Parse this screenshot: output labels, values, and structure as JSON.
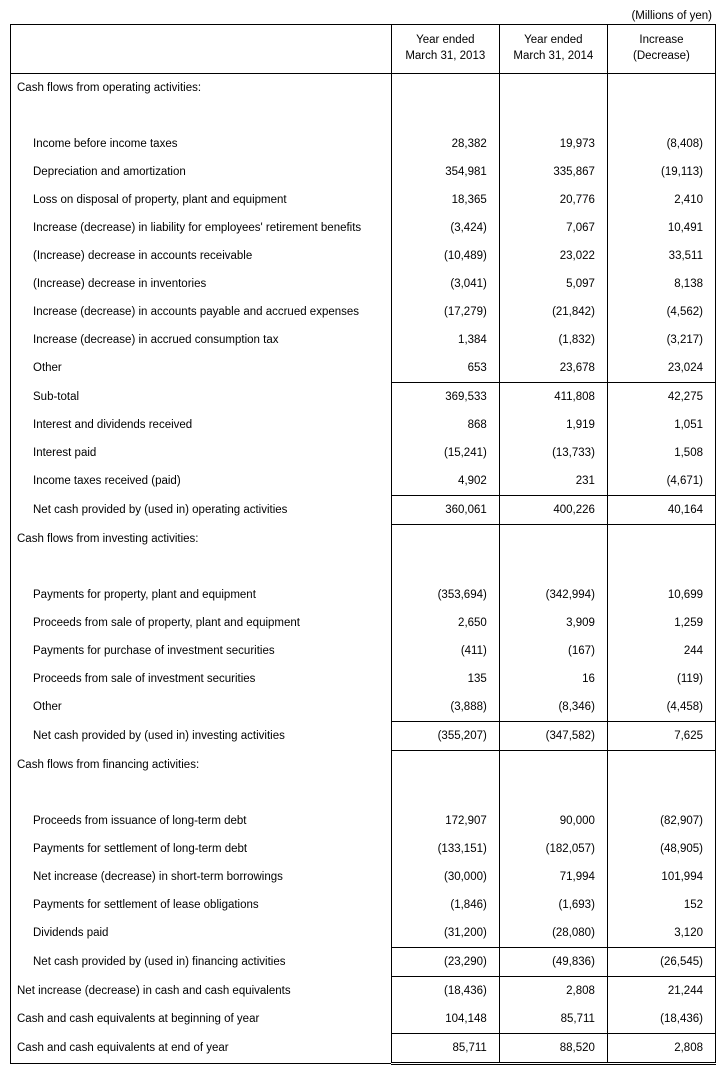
{
  "units_label": "(Millions of yen)",
  "headers": {
    "blank": "",
    "col1_line1": "Year ended",
    "col1_line2": "March 31, 2013",
    "col2_line1": "Year ended",
    "col2_line2": "March 31, 2014",
    "col3_line1": "Increase",
    "col3_line2": "(Decrease)"
  },
  "sections": {
    "op": "Cash flows from operating activities:",
    "inv": "Cash flows from investing activities:",
    "fin": "Cash flows from financing activities:"
  },
  "rows": {
    "income_before_tax": {
      "label": "Income before income taxes",
      "c1": "28,382",
      "c2": "19,973",
      "c3": "(8,408)"
    },
    "dep_amort": {
      "label": "Depreciation and amortization",
      "c1": "354,981",
      "c2": "335,867",
      "c3": "(19,113)"
    },
    "loss_disposal_ppe": {
      "label": "Loss on disposal of property, plant and equipment",
      "c1": "18,365",
      "c2": "20,776",
      "c3": "2,410"
    },
    "retirement_liability": {
      "label": "Increase (decrease) in liability for employees' retirement benefits",
      "c1": "(3,424)",
      "c2": "7,067",
      "c3": "10,491"
    },
    "ar": {
      "label": "(Increase) decrease in accounts receivable",
      "c1": "(10,489)",
      "c2": "23,022",
      "c3": "33,511"
    },
    "inventories": {
      "label": "(Increase) decrease in inventories",
      "c1": "(3,041)",
      "c2": "5,097",
      "c3": "8,138"
    },
    "ap_accrued": {
      "label": "Increase (decrease) in accounts payable and accrued expenses",
      "c1": "(17,279)",
      "c2": "(21,842)",
      "c3": "(4,562)"
    },
    "consumption_tax": {
      "label": "Increase (decrease) in accrued consumption tax",
      "c1": "1,384",
      "c2": "(1,832)",
      "c3": "(3,217)"
    },
    "op_other": {
      "label": "Other",
      "c1": "653",
      "c2": "23,678",
      "c3": "23,024"
    },
    "sub_total": {
      "label": "Sub-total",
      "c1": "369,533",
      "c2": "411,808",
      "c3": "42,275"
    },
    "interest_div_rec": {
      "label": "Interest and dividends received",
      "c1": "868",
      "c2": "1,919",
      "c3": "1,051"
    },
    "interest_paid": {
      "label": "Interest paid",
      "c1": "(15,241)",
      "c2": "(13,733)",
      "c3": "1,508"
    },
    "income_tax_rec": {
      "label": "Income taxes received (paid)",
      "c1": "4,902",
      "c2": "231",
      "c3": "(4,671)"
    },
    "net_op": {
      "label": "Net cash provided by (used in) operating activities",
      "c1": "360,061",
      "c2": "400,226",
      "c3": "40,164"
    },
    "pay_ppe": {
      "label": "Payments for property, plant and equipment",
      "c1": "(353,694)",
      "c2": "(342,994)",
      "c3": "10,699"
    },
    "proceeds_ppe": {
      "label": "Proceeds from sale of property, plant and equipment",
      "c1": "2,650",
      "c2": "3,909",
      "c3": "1,259"
    },
    "pay_inv_sec": {
      "label": "Payments for purchase of investment securities",
      "c1": "(411)",
      "c2": "(167)",
      "c3": "244"
    },
    "proceeds_inv_sec": {
      "label": "Proceeds from sale of investment securities",
      "c1": "135",
      "c2": "16",
      "c3": "(119)"
    },
    "inv_other": {
      "label": "Other",
      "c1": "(3,888)",
      "c2": "(8,346)",
      "c3": "(4,458)"
    },
    "net_inv": {
      "label": "Net cash provided by (used in) investing activities",
      "c1": "(355,207)",
      "c2": "(347,582)",
      "c3": "7,625"
    },
    "lt_debt_issue": {
      "label": "Proceeds from issuance of long-term debt",
      "c1": "172,907",
      "c2": "90,000",
      "c3": "(82,907)"
    },
    "lt_debt_settle": {
      "label": "Payments for settlement of long-term debt",
      "c1": "(133,151)",
      "c2": "(182,057)",
      "c3": "(48,905)"
    },
    "st_borrow": {
      "label": "Net increase (decrease) in short-term borrowings",
      "c1": "(30,000)",
      "c2": "71,994",
      "c3": "101,994"
    },
    "lease_settle": {
      "label": "Payments for settlement of lease obligations",
      "c1": "(1,846)",
      "c2": "(1,693)",
      "c3": "152"
    },
    "dividends_paid": {
      "label": "Dividends paid",
      "c1": "(31,200)",
      "c2": "(28,080)",
      "c3": "3,120"
    },
    "net_fin": {
      "label": "Net cash provided by (used in) financing activities",
      "c1": "(23,290)",
      "c2": "(49,836)",
      "c3": "(26,545)"
    },
    "net_cash_change": {
      "label": "Net increase (decrease) in cash and cash equivalents",
      "c1": "(18,436)",
      "c2": "2,808",
      "c3": "21,244"
    },
    "cash_begin": {
      "label": "Cash and cash equivalents at beginning of year",
      "c1": "104,148",
      "c2": "85,711",
      "c3": "(18,436)"
    },
    "cash_end": {
      "label": "Cash and cash equivalents at end of year",
      "c1": "85,711",
      "c2": "88,520",
      "c3": "2,808"
    }
  }
}
